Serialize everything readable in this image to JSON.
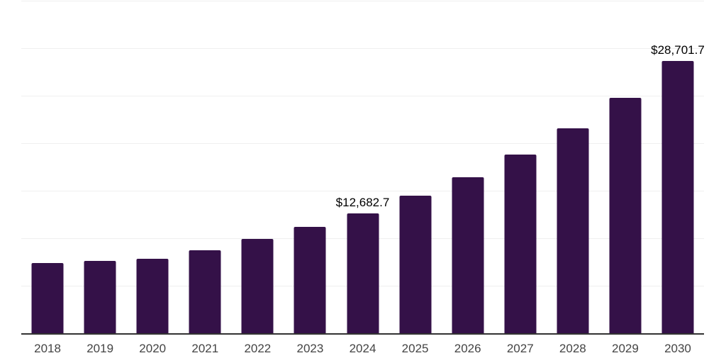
{
  "chart_data": {
    "type": "bar",
    "categories": [
      "2018",
      "2019",
      "2020",
      "2021",
      "2022",
      "2023",
      "2024",
      "2025",
      "2026",
      "2027",
      "2028",
      "2029",
      "2030"
    ],
    "values": [
      7440,
      7720,
      7890,
      8840,
      10000,
      11250,
      12682.7,
      14540,
      16480,
      18850,
      21660,
      24870,
      28701.7
    ],
    "data_labels": {
      "2024": "$12,682.7",
      "2030": "$28,701.7"
    },
    "ylim": [
      0,
      35000
    ],
    "grid_step": 5000,
    "grid_intervals": 7,
    "grid": "on",
    "legend": "none",
    "colors": {
      "bar": "#341148",
      "axis_line": "#333333",
      "gridline": "#efefef",
      "x_tick_label": "#444444",
      "data_label": "#000000",
      "background": "#ffffff"
    }
  }
}
